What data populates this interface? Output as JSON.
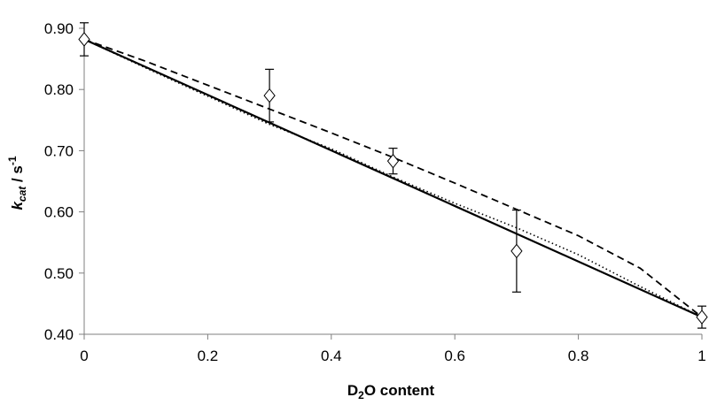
{
  "chart_data": {
    "type": "scatter",
    "xlabel": {
      "main": "D",
      "sub": "2",
      "rest": "O content"
    },
    "ylabel": {
      "main": "k",
      "sub": "cat",
      "rest": " / s",
      "sup": "-1"
    },
    "xlim": [
      0,
      1
    ],
    "ylim": [
      0.4,
      0.9
    ],
    "x_ticks": [
      0,
      0.2,
      0.4,
      0.6,
      0.8,
      1
    ],
    "x_tick_labels": [
      "0",
      "0.2",
      "0.4",
      "0.6",
      "0.8",
      "1"
    ],
    "y_ticks": [
      0.4,
      0.5,
      0.6,
      0.7,
      0.8,
      0.9
    ],
    "y_tick_labels": [
      "0.40",
      "0.50",
      "0.60",
      "0.70",
      "0.80",
      "0.90"
    ],
    "grid": false,
    "points": [
      {
        "x": 0.0,
        "y": 0.882,
        "err": 0.027
      },
      {
        "x": 0.3,
        "y": 0.79,
        "err": 0.043
      },
      {
        "x": 0.5,
        "y": 0.683,
        "err": 0.021
      },
      {
        "x": 0.7,
        "y": 0.536,
        "err": 0.067
      },
      {
        "x": 1.0,
        "y": 0.428,
        "err": 0.018
      }
    ],
    "series": [
      {
        "style": "solid",
        "points": [
          [
            0,
            0.882
          ],
          [
            1,
            0.428
          ]
        ]
      },
      {
        "style": "dashed",
        "points": [
          [
            0,
            0.882
          ],
          [
            0.1,
            0.846
          ],
          [
            0.2,
            0.807
          ],
          [
            0.3,
            0.768
          ],
          [
            0.4,
            0.729
          ],
          [
            0.5,
            0.689
          ],
          [
            0.6,
            0.647
          ],
          [
            0.7,
            0.604
          ],
          [
            0.8,
            0.561
          ],
          [
            0.9,
            0.508
          ],
          [
            1,
            0.428
          ]
        ]
      },
      {
        "style": "dotted",
        "points": [
          [
            0,
            0.882
          ],
          [
            0.1,
            0.835
          ],
          [
            0.2,
            0.789
          ],
          [
            0.3,
            0.743
          ],
          [
            0.4,
            0.703
          ],
          [
            0.5,
            0.657
          ],
          [
            0.6,
            0.614
          ],
          [
            0.7,
            0.574
          ],
          [
            0.8,
            0.53
          ],
          [
            0.9,
            0.478
          ],
          [
            1,
            0.428
          ]
        ]
      }
    ]
  }
}
